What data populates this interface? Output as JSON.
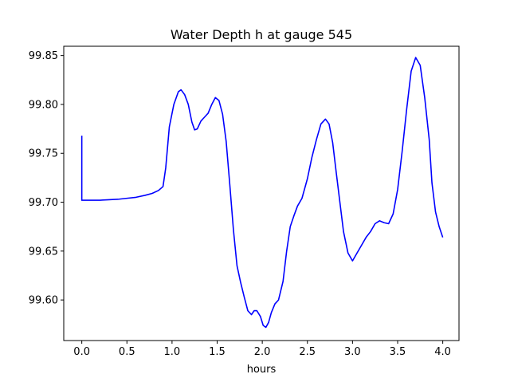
{
  "chart_data": {
    "type": "line",
    "title": "Water Depth h at gauge 545",
    "xlabel": "hours",
    "ylabel": "",
    "xlim": [
      -0.2,
      4.18
    ],
    "ylim": [
      99.5585,
      99.8595
    ],
    "xticks": [
      0.0,
      0.5,
      1.0,
      1.5,
      2.0,
      2.5,
      3.0,
      3.5,
      4.0
    ],
    "xtick_labels": [
      "0.0",
      "0.5",
      "1.0",
      "1.5",
      "2.0",
      "2.5",
      "3.0",
      "3.5",
      "4.0"
    ],
    "yticks": [
      99.6,
      99.65,
      99.7,
      99.75,
      99.8,
      99.85
    ],
    "ytick_labels": [
      "99.60",
      "99.65",
      "99.70",
      "99.75",
      "99.80",
      "99.85"
    ],
    "grid": false,
    "series": [
      {
        "color": "#0000ff",
        "x": [
          0.0,
          0.0,
          0.01,
          0.1,
          0.2,
          0.3,
          0.4,
          0.5,
          0.6,
          0.7,
          0.78,
          0.85,
          0.9,
          0.93,
          0.97,
          1.02,
          1.07,
          1.1,
          1.14,
          1.18,
          1.22,
          1.25,
          1.28,
          1.32,
          1.36,
          1.4,
          1.44,
          1.48,
          1.52,
          1.56,
          1.6,
          1.64,
          1.68,
          1.72,
          1.76,
          1.8,
          1.84,
          1.88,
          1.91,
          1.94,
          1.98,
          2.01,
          2.04,
          2.07,
          2.1,
          2.14,
          2.18,
          2.23,
          2.27,
          2.31,
          2.35,
          2.39,
          2.44,
          2.5,
          2.55,
          2.6,
          2.65,
          2.7,
          2.74,
          2.78,
          2.82,
          2.86,
          2.9,
          2.95,
          3.0,
          3.05,
          3.1,
          3.15,
          3.2,
          3.25,
          3.3,
          3.35,
          3.4,
          3.45,
          3.5,
          3.55,
          3.6,
          3.65,
          3.7,
          3.75,
          3.8,
          3.85,
          3.88,
          3.92,
          3.96,
          4.0
        ],
        "y": [
          99.768,
          99.702,
          99.702,
          99.702,
          99.702,
          99.7025,
          99.703,
          99.704,
          99.705,
          99.707,
          99.709,
          99.712,
          99.716,
          99.735,
          99.777,
          99.8,
          99.813,
          99.815,
          99.81,
          99.8,
          99.782,
          99.774,
          99.775,
          99.783,
          99.787,
          99.791,
          99.8,
          99.807,
          99.804,
          99.79,
          99.762,
          99.718,
          99.672,
          99.635,
          99.618,
          99.603,
          99.589,
          99.585,
          99.589,
          99.589,
          99.583,
          99.574,
          99.572,
          99.577,
          99.587,
          99.596,
          99.6,
          99.619,
          99.65,
          99.675,
          99.686,
          99.696,
          99.704,
          99.724,
          99.746,
          99.764,
          99.78,
          99.785,
          99.78,
          99.761,
          99.73,
          99.7,
          99.67,
          99.648,
          99.64,
          99.648,
          99.656,
          99.664,
          99.67,
          99.678,
          99.681,
          99.679,
          99.678,
          99.688,
          99.713,
          99.752,
          99.795,
          99.834,
          99.848,
          99.84,
          99.807,
          99.764,
          99.72,
          99.69,
          99.675,
          99.664
        ]
      }
    ]
  }
}
